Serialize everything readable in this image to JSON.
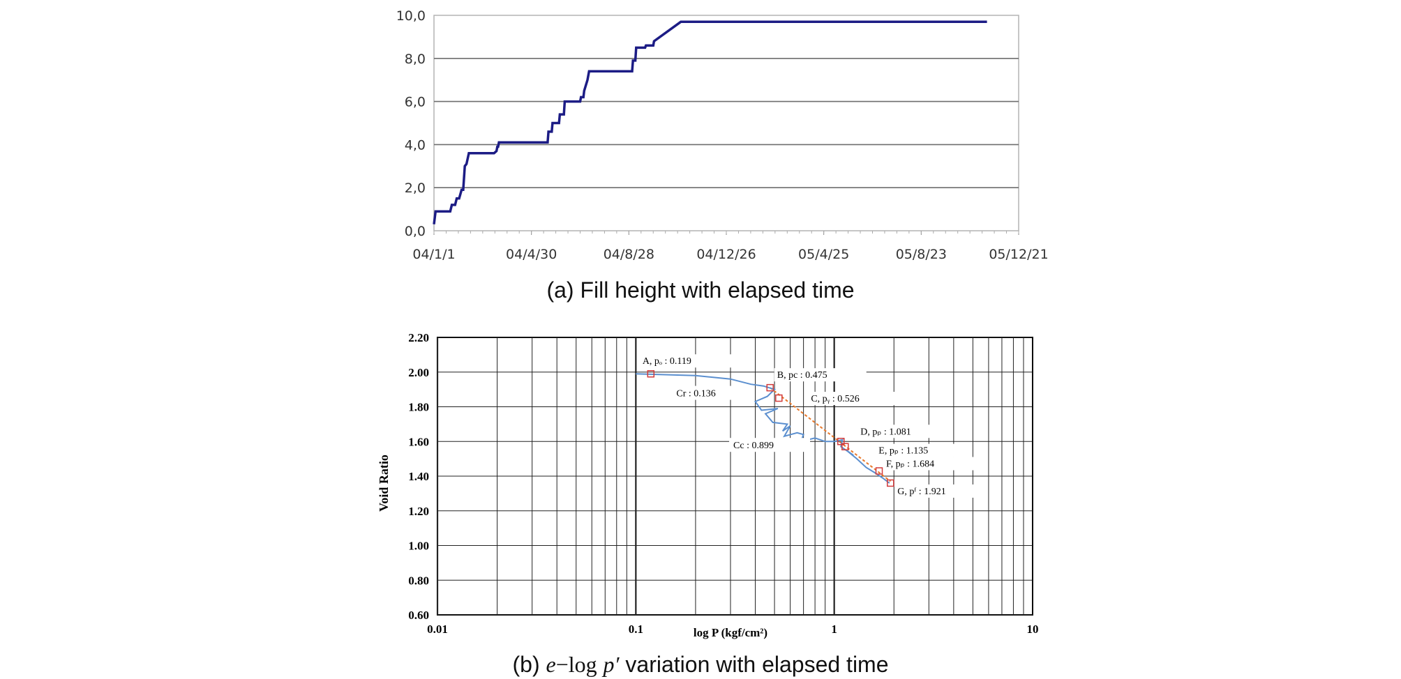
{
  "chart_data": [
    {
      "type": "line",
      "caption": "(a) Fill height with elapsed time",
      "xlabel": "",
      "ylabel": "",
      "x_tick_labels": [
        "04/1/1",
        "04/4/30",
        "04/8/28",
        "04/12/26",
        "05/4/25",
        "05/8/23",
        "05/12/21"
      ],
      "x_tick_values": [
        "2004-01-01",
        "2004-04-30",
        "2004-08-28",
        "2004-12-26",
        "2005-04-25",
        "2005-08-23",
        "2005-12-21"
      ],
      "xlim": [
        "2004-01-01",
        "2005-12-21"
      ],
      "y_tick_labels": [
        "0,0",
        "2,0",
        "4,0",
        "6,0",
        "8,0",
        "10,0"
      ],
      "ylim": [
        0,
        10
      ],
      "grid": "horizontal",
      "line_color": "#1c1c85",
      "series": [
        {
          "x": [
            "2004-01-01",
            "2004-01-03",
            "2004-01-21",
            "2004-01-23",
            "2004-01-27",
            "2004-01-29",
            "2004-02-01",
            "2004-02-04",
            "2004-02-06",
            "2004-02-08",
            "2004-02-10",
            "2004-02-13",
            "2004-03-15",
            "2004-03-18",
            "2004-03-19",
            "2004-03-20",
            "2004-03-21",
            "2004-05-20",
            "2004-05-21",
            "2004-05-25",
            "2004-05-26",
            "2004-06-03",
            "2004-06-04",
            "2004-06-09",
            "2004-06-10",
            "2004-06-29",
            "2004-06-30",
            "2004-07-03",
            "2004-07-04",
            "2004-07-08",
            "2004-07-10",
            "2004-09-01",
            "2004-09-02",
            "2004-09-05",
            "2004-09-06",
            "2004-09-17",
            "2004-09-18",
            "2004-09-27",
            "2004-09-28",
            "2004-10-31",
            "2005-11-12"
          ],
          "y": [
            0.3,
            0.9,
            0.9,
            1.2,
            1.2,
            1.5,
            1.5,
            1.9,
            1.9,
            3.0,
            3.1,
            3.6,
            3.6,
            3.7,
            3.9,
            3.9,
            4.1,
            4.1,
            4.6,
            4.6,
            5.0,
            5.0,
            5.4,
            5.4,
            6.0,
            6.0,
            6.2,
            6.2,
            6.5,
            7.0,
            7.4,
            7.4,
            7.9,
            7.9,
            8.5,
            8.5,
            8.6,
            8.6,
            8.8,
            9.7,
            9.7
          ]
        }
      ]
    },
    {
      "type": "line",
      "caption_prefix": "(b)",
      "caption_math_e": "e",
      "caption_math_minus": "−",
      "caption_math_log": "log",
      "caption_math_p": "p′",
      "caption_suffix": "variation with elapsed time",
      "xlabel": "log P (kgf/cm²)",
      "ylabel": "Void Ratio",
      "x_scale": "log",
      "xlim": [
        0.01,
        10
      ],
      "x_tick_labels": [
        "0.01",
        "0.1",
        "1",
        "10"
      ],
      "x_tick_values": [
        0.01,
        0.1,
        1,
        10
      ],
      "ylim": [
        0.6,
        2.2
      ],
      "y_tick_labels": [
        "0.60",
        "0.80",
        "1.00",
        "1.20",
        "1.40",
        "1.60",
        "1.80",
        "2.00",
        "2.20"
      ],
      "grid": true,
      "curve_color": "#5b8fcf",
      "fit_color": "#e8782a",
      "marker_color": "#d23a3a",
      "series": [
        {
          "x": [
            0.1,
            0.2,
            0.3,
            0.38,
            0.44,
            0.5,
            0.46,
            0.4,
            0.43,
            0.52,
            0.45,
            0.49,
            0.58,
            0.55,
            0.6,
            0.56,
            0.65,
            0.7,
            0.68,
            0.8,
            0.9,
            1.0,
            1.1,
            1.08,
            1.25,
            1.15,
            1.3,
            1.45,
            1.6,
            1.75,
            1.9
          ],
          "y": [
            1.99,
            1.98,
            1.96,
            1.93,
            1.92,
            1.9,
            1.86,
            1.83,
            1.78,
            1.79,
            1.76,
            1.71,
            1.7,
            1.66,
            1.69,
            1.63,
            1.65,
            1.64,
            1.6,
            1.62,
            1.6,
            1.6,
            1.61,
            1.57,
            1.52,
            1.55,
            1.5,
            1.45,
            1.42,
            1.39,
            1.36
          ]
        }
      ],
      "fit_line": {
        "x": [
          0.475,
          1.921
        ],
        "y": [
          1.91,
          1.37
        ]
      },
      "points": [
        {
          "x": 0.119,
          "y": 1.99,
          "label": "A, pₒ : 0.119"
        },
        {
          "x": 0.475,
          "y": 1.91,
          "label": "B, pc : 0.475"
        },
        {
          "x": 0.526,
          "y": 1.85,
          "label": "C, pᵧ : 0.526"
        },
        {
          "x": 1.081,
          "y": 1.6,
          "label": "D, pₚ : 1.081"
        },
        {
          "x": 1.135,
          "y": 1.57,
          "label": "E, pₚ : 1.135"
        },
        {
          "x": 1.684,
          "y": 1.43,
          "label": "F, pₚ : 1.684"
        },
        {
          "x": 1.921,
          "y": 1.36,
          "label": "G, pᶠ : 1.921"
        }
      ],
      "annotations": [
        {
          "text": "Cr  :  0.136",
          "x": 0.16,
          "y": 1.86
        },
        {
          "text": "Cc : 0.899",
          "x": 0.31,
          "y": 1.56
        }
      ]
    }
  ]
}
